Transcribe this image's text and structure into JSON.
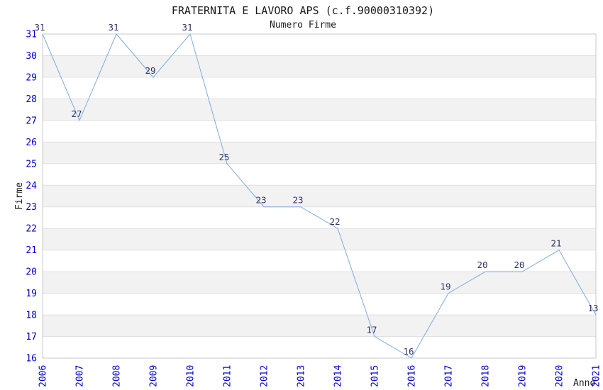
{
  "chart_data": {
    "type": "line",
    "title": "FRATERNITA E LAVORO APS (c.f.90000310392)",
    "subtitle": "Numero Firme",
    "xlabel": "Anno",
    "ylabel": "Firme",
    "x": [
      2006,
      2007,
      2008,
      2009,
      2010,
      2011,
      2012,
      2013,
      2014,
      2015,
      2016,
      2017,
      2018,
      2019,
      2020,
      2021
    ],
    "values": [
      31,
      27,
      31,
      29,
      31,
      25,
      23,
      23,
      22,
      17,
      16,
      19,
      20,
      20,
      21,
      13
    ],
    "last_point_plotted_at": 18,
    "ylim": [
      16,
      31
    ],
    "y_tick_step": 1,
    "grid": "horizontal gridlines with alternating grey bands",
    "legend": "none",
    "colors": {
      "line": "#7cacdf",
      "tick_label": "#0000cc",
      "data_label": "#333366",
      "band": "#f2f2f2",
      "gridline": "#e0e0e0",
      "border": "#c9c9c9",
      "text": "#1a1a1a"
    }
  }
}
